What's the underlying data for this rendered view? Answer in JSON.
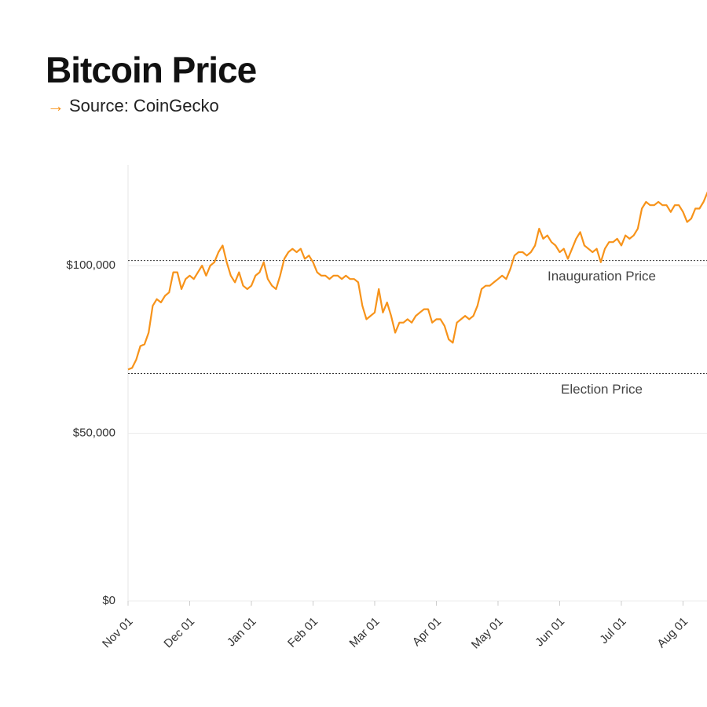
{
  "chart_data": {
    "type": "line",
    "title": "Bitcoin Price",
    "subtitle": "Source: CoinGecko",
    "categories": [
      "Nov 01",
      null,
      null,
      null,
      null,
      null,
      null,
      null,
      null,
      null,
      null,
      null,
      null,
      null,
      null,
      "Dec 01",
      null,
      null,
      null,
      null,
      null,
      null,
      null,
      null,
      null,
      null,
      null,
      null,
      null,
      null,
      "Jan 01",
      null,
      null,
      null,
      null,
      null,
      null,
      null,
      null,
      null,
      null,
      null,
      null,
      null,
      null,
      "Feb 01",
      null,
      null,
      null,
      null,
      null,
      null,
      null,
      null,
      null,
      null,
      null,
      null,
      null,
      null,
      "Mar 01",
      null,
      null,
      null,
      null,
      null,
      null,
      null,
      null,
      null,
      null,
      null,
      null,
      null,
      null,
      "Apr 01",
      null,
      null,
      null,
      null,
      null,
      null,
      null,
      null,
      null,
      null,
      null,
      null,
      null,
      null,
      "May 01",
      null,
      null,
      null,
      null,
      null,
      null,
      null,
      null,
      null,
      null,
      null,
      null,
      null,
      null,
      "Jun 01",
      null,
      null,
      null,
      null,
      null,
      null,
      null,
      null,
      null,
      null,
      null,
      null,
      null,
      null,
      "Jul 01",
      null,
      null,
      null,
      null,
      null,
      null,
      null,
      null,
      null,
      null,
      null,
      null,
      null,
      null,
      "Aug 01",
      null,
      null,
      null,
      null,
      null,
      null
    ],
    "series": [
      {
        "name": "Bitcoin Price",
        "color": "#f7931a",
        "values": [
          69000,
          69500,
          72000,
          76000,
          76500,
          80000,
          88000,
          90000,
          89000,
          91000,
          92000,
          98000,
          98000,
          93000,
          96000,
          97000,
          96000,
          98000,
          100000,
          97000,
          100000,
          101000,
          104000,
          106000,
          101000,
          97000,
          95000,
          98000,
          94000,
          93000,
          94000,
          97000,
          98000,
          101000,
          96000,
          94000,
          93000,
          97000,
          102000,
          104000,
          105000,
          104000,
          105000,
          102000,
          103000,
          101000,
          98000,
          97000,
          97000,
          96000,
          97000,
          97000,
          96000,
          97000,
          96000,
          96000,
          95000,
          88000,
          84000,
          85000,
          86000,
          93000,
          86000,
          89000,
          85000,
          80000,
          83000,
          83000,
          84000,
          83000,
          85000,
          86000,
          87000,
          87000,
          83000,
          84000,
          84000,
          82000,
          78000,
          77000,
          83000,
          84000,
          85000,
          84000,
          85000,
          88000,
          93000,
          94000,
          94000,
          95000,
          96000,
          97000,
          96000,
          99000,
          103000,
          104000,
          104000,
          103000,
          104000,
          106000,
          111000,
          108000,
          109000,
          107000,
          106000,
          104000,
          105000,
          102000,
          105000,
          108000,
          110000,
          106000,
          105000,
          104000,
          105000,
          101000,
          105000,
          107000,
          107000,
          108000,
          106000,
          109000,
          108000,
          109000,
          111000,
          117000,
          119000,
          118000,
          118000,
          119000,
          118000,
          118000,
          116000,
          118000,
          118000,
          116000,
          113000,
          114000,
          117000,
          117000,
          119000,
          122000
        ]
      }
    ],
    "reference_lines": [
      {
        "label": "Inauguration Price",
        "value": 101500
      },
      {
        "label": "Election Price",
        "value": 67800
      }
    ],
    "ylim": [
      0,
      130000
    ],
    "yticks": [
      {
        "value": 0,
        "label": "$0"
      },
      {
        "value": 50000,
        "label": "$50,000"
      },
      {
        "value": 100000,
        "label": "$100,000"
      }
    ],
    "grid": true
  }
}
